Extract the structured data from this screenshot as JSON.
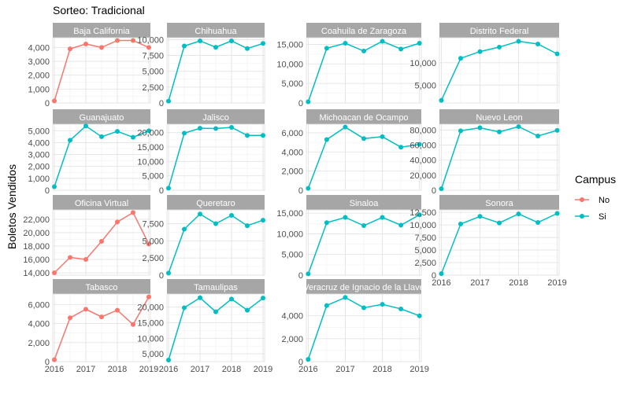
{
  "chart_data": {
    "type": "line",
    "title": "Sorteo: Tradicional",
    "ylabel": "Boletos Vendidos",
    "xlabel": "",
    "grid": true,
    "x": [
      2016.0,
      2016.5,
      2017.0,
      2017.5,
      2018.0,
      2018.5,
      2019.0
    ],
    "x_ticks": [
      "2016",
      "2017",
      "2018",
      "2019"
    ],
    "legend": {
      "title": "Campus",
      "position": "right",
      "entries": [
        {
          "label": "No",
          "color": "#F8766D"
        },
        {
          "label": "Si",
          "color": "#00BFC4"
        }
      ]
    },
    "strip_color": "#A6A6A6",
    "panels": [
      {
        "name": "Baja California",
        "campus": "No",
        "ylim": [
          0,
          4700
        ],
        "ticks": [
          0,
          1000,
          2000,
          3000,
          4000
        ],
        "tick_labels": [
          "0",
          "1,000",
          "2,000",
          "3,000",
          "4,000"
        ],
        "values": [
          150,
          3900,
          4250,
          4000,
          4500,
          4500,
          4000
        ]
      },
      {
        "name": "Chihuahua",
        "campus": "Si",
        "ylim": [
          0,
          10300
        ],
        "ticks": [
          0,
          2500,
          5000,
          7500,
          10000
        ],
        "tick_labels": [
          "0",
          "2,500",
          "5,000",
          "7,500",
          "10,000"
        ],
        "values": [
          300,
          9000,
          9800,
          8800,
          9800,
          8600,
          9400
        ]
      },
      {
        "name": "Coahuila de Zaragoza",
        "campus": "Si",
        "ylim": [
          0,
          16700
        ],
        "ticks": [
          0,
          5000,
          10000,
          15000
        ],
        "tick_labels": [
          "0",
          "5,000",
          "10,000",
          "15,000"
        ],
        "values": [
          300,
          14000,
          15300,
          13300,
          15800,
          13800,
          15300
        ]
      },
      {
        "name": "Distrito Federal",
        "campus": "Si",
        "ylim": [
          1000,
          15600
        ],
        "ticks": [
          5000,
          10000
        ],
        "tick_labels": [
          "5,000",
          "10,000"
        ],
        "values": [
          1600,
          11000,
          12500,
          13500,
          14800,
          14200,
          12000
        ]
      },
      {
        "name": "Guanajuato",
        "campus": "Si",
        "ylim": [
          0,
          5550
        ],
        "ticks": [
          0,
          1000,
          2000,
          3000,
          4000,
          5000
        ],
        "tick_labels": [
          "0",
          "1,000",
          "2,000",
          "3,000",
          "4,000",
          "5,000"
        ],
        "values": [
          300,
          4200,
          5400,
          4500,
          4950,
          4450,
          5000
        ]
      },
      {
        "name": "Jalisco",
        "campus": "Si",
        "ylim": [
          0,
          22900
        ],
        "ticks": [
          0,
          5000,
          10000,
          15000,
          20000
        ],
        "tick_labels": [
          "0",
          "5,000",
          "10,000",
          "15,000",
          "20,000"
        ],
        "values": [
          700,
          19800,
          21500,
          21400,
          21800,
          19000,
          19000
        ]
      },
      {
        "name": "Michoacan de Ocampo",
        "campus": "Si",
        "ylim": [
          0,
          6900
        ],
        "ticks": [
          0,
          2000,
          4000,
          6000
        ],
        "tick_labels": [
          "0",
          "2,000",
          "4,000",
          "6,000"
        ],
        "values": [
          200,
          5300,
          6600,
          5400,
          5600,
          4500,
          4800
        ]
      },
      {
        "name": "Nuevo Leon",
        "campus": "Si",
        "ylim": [
          0,
          87700
        ],
        "ticks": [
          0,
          20000,
          40000,
          60000,
          80000
        ],
        "tick_labels": [
          "0",
          "20,000",
          "40,000",
          "60,000",
          "80,000"
        ],
        "values": [
          2000,
          79000,
          83000,
          77500,
          84500,
          72000,
          79500
        ]
      },
      {
        "name": "Oficina Virtual",
        "campus": "No",
        "ylim": [
          13650,
          23400
        ],
        "ticks": [
          14000,
          16000,
          18000,
          20000,
          22000
        ],
        "tick_labels": [
          "14,000",
          "16,000",
          "18,000",
          "20,000",
          "22,000"
        ],
        "values": [
          14000,
          16300,
          16000,
          18700,
          21600,
          23000,
          18300
        ]
      },
      {
        "name": "Queretaro",
        "campus": "Si",
        "ylim": [
          0,
          9500
        ],
        "ticks": [
          0,
          2500,
          5000,
          7500
        ],
        "tick_labels": [
          "0",
          "2,500",
          "5,000",
          "7,500"
        ],
        "values": [
          300,
          6700,
          8900,
          7500,
          8700,
          7200,
          8000
        ]
      },
      {
        "name": "Sinaloa",
        "campus": "Si",
        "ylim": [
          0,
          15800
        ],
        "ticks": [
          0,
          5000,
          10000,
          15000
        ],
        "tick_labels": [
          "0",
          "5,000",
          "10,000",
          "15,000"
        ],
        "values": [
          300,
          12700,
          14000,
          12000,
          14000,
          12100,
          14600
        ]
      },
      {
        "name": "Sonora",
        "campus": "Si",
        "ylim": [
          0,
          13000
        ],
        "ticks": [
          0,
          2500,
          5000,
          7500,
          10000,
          12500
        ],
        "tick_labels": [
          "0",
          "2,500",
          "5,000",
          "7,500",
          "10,000",
          "12,500"
        ],
        "values": [
          300,
          10200,
          11700,
          10400,
          12200,
          10500,
          12300
        ]
      },
      {
        "name": "Tabasco",
        "campus": "No",
        "ylim": [
          0,
          7100
        ],
        "ticks": [
          0,
          2000,
          4000,
          6000
        ],
        "tick_labels": [
          "0",
          "2,000",
          "4,000",
          "6,000"
        ],
        "values": [
          200,
          4600,
          5500,
          4700,
          5400,
          3900,
          6800
        ]
      },
      {
        "name": "Tamaulipas",
        "campus": "Si",
        "ylim": [
          2500,
          24200
        ],
        "ticks": [
          5000,
          10000,
          15000,
          20000
        ],
        "tick_labels": [
          "5,000",
          "10,000",
          "15,000",
          "20,000"
        ],
        "values": [
          3000,
          19800,
          23000,
          18500,
          22600,
          19000,
          22900
        ]
      },
      {
        "name": "Veracruz de Ignacio de la Llave",
        "campus": "Si",
        "ylim": [
          0,
          5900
        ],
        "ticks": [
          0,
          2000,
          4000
        ],
        "tick_labels": [
          "0",
          "2,000",
          "4,000"
        ],
        "values": [
          200,
          4900,
          5600,
          4700,
          5000,
          4600,
          4000
        ]
      }
    ]
  }
}
